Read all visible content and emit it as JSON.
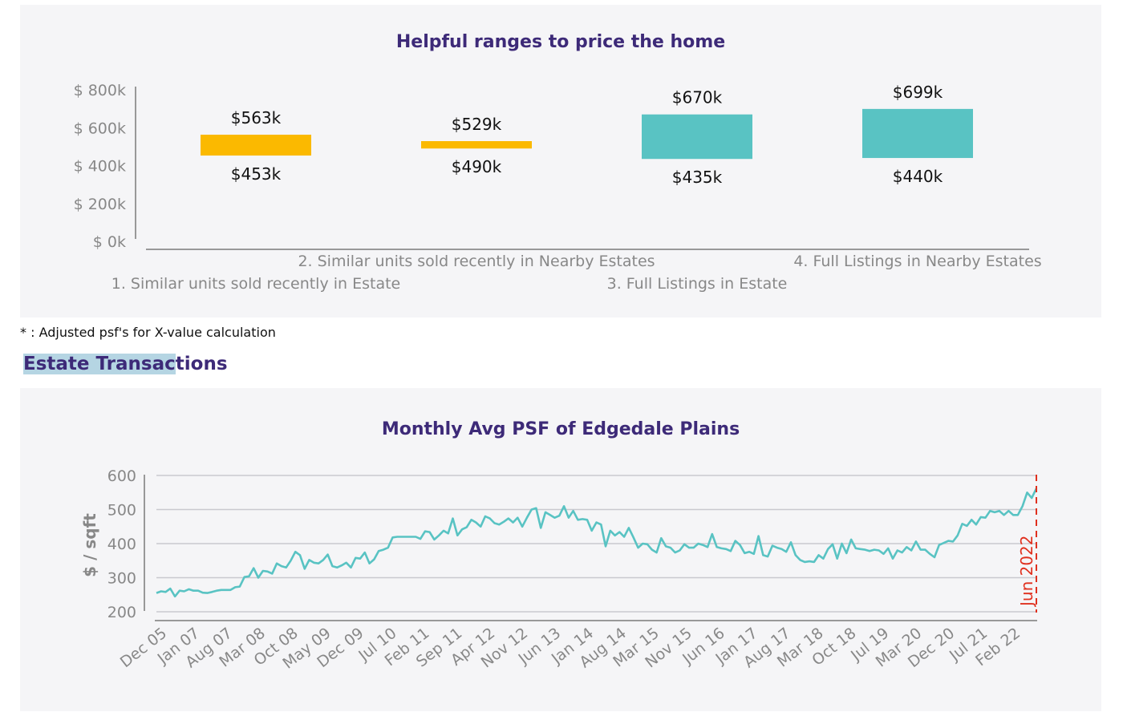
{
  "footnote": "* : Adjusted psf's for X-value calculation",
  "section": {
    "title_highlighted": "Estate Transac",
    "title_rest": "tions"
  },
  "chart_data": [
    {
      "type": "bar",
      "subtype": "floating-range",
      "title": "Helpful ranges to price the home",
      "ylim": [
        0,
        800000
      ],
      "yticks": [
        {
          "value": 0,
          "label": "$ 0k"
        },
        {
          "value": 200000,
          "label": "$ 200k"
        },
        {
          "value": 400000,
          "label": "$ 400k"
        },
        {
          "value": 600000,
          "label": "$ 600k"
        },
        {
          "value": 800000,
          "label": "$ 800k"
        }
      ],
      "grid": false,
      "categories": [
        "1. Similar units sold recently in Estate",
        "2. Similar units sold recently in Nearby Estates",
        "3. Full Listings in Estate",
        "4. Full Listings in Nearby Estates"
      ],
      "ranges": [
        {
          "low": 453000,
          "high": 563000,
          "low_label": "$453k",
          "high_label": "$563k",
          "color": "#fbb900"
        },
        {
          "low": 490000,
          "high": 529000,
          "low_label": "$490k",
          "high_label": "$529k",
          "color": "#fbb900"
        },
        {
          "low": 435000,
          "high": 670000,
          "low_label": "$435k",
          "high_label": "$670k",
          "color": "#59c3c3"
        },
        {
          "low": 440000,
          "high": 699000,
          "low_label": "$440k",
          "high_label": "$699k",
          "color": "#59c3c3"
        }
      ]
    },
    {
      "type": "line",
      "title": "Monthly Avg PSF of Edgedale Plains",
      "xlabel": "",
      "ylabel": "$ / sqft",
      "ylim": [
        200,
        600
      ],
      "yticks": [
        200,
        300,
        400,
        500,
        600
      ],
      "grid": true,
      "color": "#59c3c3",
      "x_tick_labels": [
        "Dec 05",
        "Jan 07",
        "Aug 07",
        "Mar 08",
        "Oct 08",
        "May 09",
        "Dec 09",
        "Jul 10",
        "Feb 11",
        "Sep 11",
        "Apr 12",
        "Nov 12",
        "Jun 13",
        "Jan 14",
        "Aug 14",
        "Mar 15",
        "Nov 15",
        "Jun 16",
        "Jan 17",
        "Aug 17",
        "Mar 18",
        "Oct 18",
        "Jul 19",
        "Mar 20",
        "Dec 20",
        "Jul 21",
        "Feb 22"
      ],
      "annotation": {
        "label": "Jun 2022",
        "color": "#e0301e",
        "style": "dashed-vertical"
      },
      "series": [
        {
          "values": [
            255,
            260,
            258,
            268,
            245,
            262,
            260,
            266,
            262,
            262,
            256,
            255,
            258,
            262,
            264,
            264,
            264,
            272,
            274,
            302,
            304,
            328,
            300,
            320,
            318,
            312,
            342,
            334,
            330,
            350,
            376,
            366,
            326,
            352,
            344,
            342,
            352,
            368,
            334,
            330,
            336,
            344,
            330,
            358,
            356,
            374,
            342,
            354,
            378,
            382,
            388,
            418,
            420,
            420,
            420,
            420,
            420,
            414,
            436,
            434,
            412,
            424,
            438,
            430,
            474,
            424,
            442,
            448,
            470,
            462,
            450,
            480,
            474,
            460,
            456,
            464,
            474,
            462,
            476,
            450,
            476,
            500,
            504,
            446,
            492,
            484,
            476,
            482,
            510,
            476,
            496,
            470,
            472,
            470,
            438,
            462,
            456,
            392,
            438,
            424,
            434,
            420,
            446,
            418,
            388,
            400,
            398,
            382,
            374,
            416,
            392,
            388,
            374,
            380,
            398,
            388,
            388,
            400,
            396,
            390,
            428,
            390,
            386,
            384,
            378,
            408,
            396,
            372,
            376,
            370,
            422,
            366,
            362,
            394,
            388,
            384,
            376,
            404,
            366,
            352,
            346,
            348,
            346,
            366,
            356,
            384,
            398,
            356,
            400,
            372,
            412,
            386,
            384,
            382,
            378,
            382,
            380,
            370,
            386,
            356,
            380,
            374,
            390,
            380,
            406,
            382,
            382,
            370,
            360,
            396,
            402,
            408,
            406,
            424,
            458,
            452,
            470,
            456,
            478,
            476,
            496,
            492,
            496,
            484,
            496,
            484,
            484,
            510,
            550,
            534,
            562
          ]
        }
      ]
    }
  ]
}
